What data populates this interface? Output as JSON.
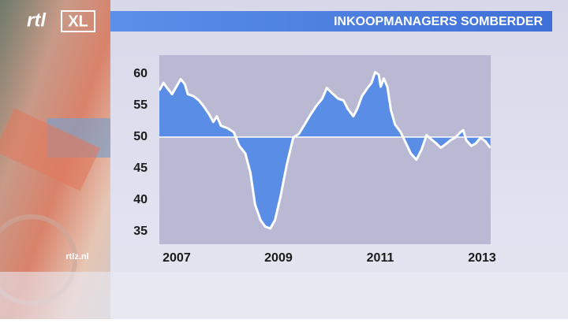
{
  "overlay": {
    "logo": "rtl",
    "logo_badge": "XL",
    "website": "rtlz.nl"
  },
  "chart_data": {
    "type": "area",
    "title": "INKOOPMANAGERS SOMBERDER",
    "x": [
      2006.66,
      2006.74,
      2006.83,
      2006.91,
      2007.08,
      2007.16,
      2007.22,
      2007.33,
      2007.44,
      2007.53,
      2007.64,
      2007.72,
      2007.79,
      2007.87,
      2008.0,
      2008.12,
      2008.23,
      2008.35,
      2008.45,
      2008.54,
      2008.65,
      2008.74,
      2008.84,
      2008.93,
      2009.04,
      2009.16,
      2009.29,
      2009.4,
      2009.5,
      2009.61,
      2009.74,
      2009.86,
      2009.95,
      2010.05,
      2010.17,
      2010.28,
      2010.36,
      2010.47,
      2010.55,
      2010.64,
      2010.75,
      2010.83,
      2010.9,
      2010.97,
      2011.01,
      2011.07,
      2011.14,
      2011.21,
      2011.29,
      2011.4,
      2011.49,
      2011.6,
      2011.71,
      2011.81,
      2011.91,
      2012.01,
      2012.1,
      2012.19,
      2012.29,
      2012.38,
      2012.47,
      2012.58,
      2012.63,
      2012.69,
      2012.79,
      2012.88,
      2012.97,
      2013.07,
      2013.16
    ],
    "values": [
      57.4,
      58.6,
      57.6,
      56.8,
      59.2,
      58.4,
      56.8,
      56.5,
      55.8,
      54.9,
      53.6,
      52.4,
      53.3,
      51.8,
      51.4,
      50.8,
      48.6,
      47.4,
      44.3,
      39.3,
      36.8,
      35.8,
      35.5,
      36.8,
      40.5,
      45.5,
      49.9,
      50.5,
      51.8,
      53.3,
      54.9,
      56.1,
      57.8,
      57.0,
      56.1,
      55.8,
      54.5,
      53.3,
      54.5,
      56.5,
      57.8,
      58.6,
      60.3,
      59.9,
      58.0,
      59.3,
      58.0,
      54.3,
      52.0,
      50.8,
      49.3,
      47.4,
      46.4,
      48.0,
      50.3,
      49.6,
      49.0,
      48.3,
      48.9,
      49.5,
      49.9,
      50.8,
      51.1,
      49.5,
      48.6,
      49.0,
      49.9,
      49.3,
      48.3
    ],
    "baseline": 50,
    "color": "#5a8de6",
    "line_color": "#ffffff",
    "xlim": [
      2006.66,
      2013.17
    ],
    "xticks": [
      2007,
      2009,
      2011,
      2013
    ],
    "ylim": [
      33,
      63
    ],
    "yticks": [
      35,
      40,
      45,
      50,
      55,
      60
    ]
  }
}
